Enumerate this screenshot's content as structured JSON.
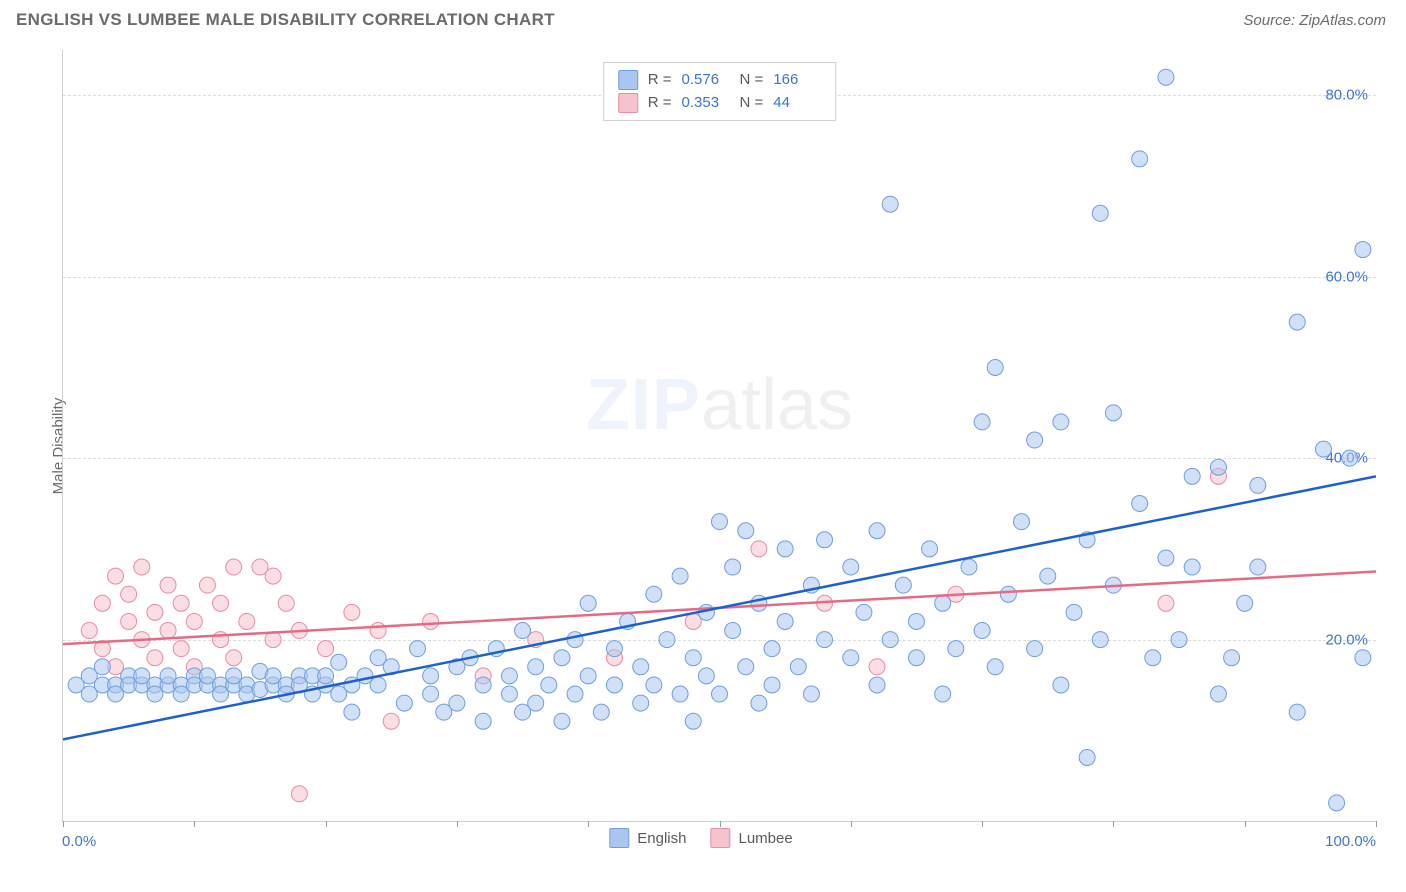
{
  "header": {
    "title": "ENGLISH VS LUMBEE MALE DISABILITY CORRELATION CHART",
    "source_prefix": "Source: ",
    "source_name": "ZipAtlas.com"
  },
  "axes": {
    "ylabel": "Male Disability",
    "xlim": [
      0,
      100
    ],
    "ylim": [
      0,
      85
    ],
    "x_ticks": [
      0,
      10,
      20,
      30,
      40,
      50,
      60,
      70,
      80,
      90,
      100
    ],
    "y_gridlines": [
      20,
      40,
      60,
      80
    ],
    "y_tick_labels": [
      "20.0%",
      "40.0%",
      "60.0%",
      "80.0%"
    ],
    "x_left_label": "0.0%",
    "x_right_label": "100.0%",
    "grid_color": "#dcdcdc",
    "axis_color": "#cfcfcf",
    "tick_label_color": "#3b74d6"
  },
  "series": {
    "english": {
      "label": "English",
      "R": "0.576",
      "N": "166",
      "fill": "#a9c6ef",
      "stroke": "#6f9ede",
      "line_color": "#1e62c9",
      "marker_radius": 8,
      "trend": {
        "x1": 0,
        "y1": 9,
        "x2": 100,
        "y2": 38
      },
      "points": [
        [
          1,
          15
        ],
        [
          2,
          16
        ],
        [
          2,
          14
        ],
        [
          3,
          15
        ],
        [
          3,
          17
        ],
        [
          4,
          15
        ],
        [
          4,
          14
        ],
        [
          5,
          16
        ],
        [
          5,
          15
        ],
        [
          6,
          15
        ],
        [
          6,
          16
        ],
        [
          7,
          15
        ],
        [
          7,
          14
        ],
        [
          8,
          15
        ],
        [
          8,
          16
        ],
        [
          9,
          15
        ],
        [
          9,
          14
        ],
        [
          10,
          16
        ],
        [
          10,
          15
        ],
        [
          11,
          15
        ],
        [
          11,
          16
        ],
        [
          12,
          15
        ],
        [
          12,
          14
        ],
        [
          13,
          15
        ],
        [
          13,
          16
        ],
        [
          14,
          15
        ],
        [
          14,
          14
        ],
        [
          15,
          16.5
        ],
        [
          15,
          14.5
        ],
        [
          16,
          15
        ],
        [
          16,
          16
        ],
        [
          17,
          15
        ],
        [
          17,
          14
        ],
        [
          18,
          16
        ],
        [
          18,
          15
        ],
        [
          19,
          16
        ],
        [
          19,
          14
        ],
        [
          20,
          15
        ],
        [
          20,
          16
        ],
        [
          21,
          17.5
        ],
        [
          21,
          14
        ],
        [
          22,
          15
        ],
        [
          23,
          16
        ],
        [
          24,
          15
        ],
        [
          25,
          17
        ],
        [
          22,
          12
        ],
        [
          24,
          18
        ],
        [
          26,
          13
        ],
        [
          27,
          19
        ],
        [
          28,
          14
        ],
        [
          28,
          16
        ],
        [
          29,
          12
        ],
        [
          30,
          17
        ],
        [
          30,
          13
        ],
        [
          31,
          18
        ],
        [
          32,
          15
        ],
        [
          32,
          11
        ],
        [
          33,
          19
        ],
        [
          34,
          14
        ],
        [
          34,
          16
        ],
        [
          35,
          12
        ],
        [
          35,
          21
        ],
        [
          36,
          17
        ],
        [
          36,
          13
        ],
        [
          37,
          15
        ],
        [
          38,
          18
        ],
        [
          38,
          11
        ],
        [
          39,
          20
        ],
        [
          39,
          14
        ],
        [
          40,
          16
        ],
        [
          40,
          24
        ],
        [
          41,
          12
        ],
        [
          42,
          19
        ],
        [
          42,
          15
        ],
        [
          43,
          22
        ],
        [
          44,
          13
        ],
        [
          44,
          17
        ],
        [
          45,
          25
        ],
        [
          45,
          15
        ],
        [
          46,
          20
        ],
        [
          47,
          14
        ],
        [
          47,
          27
        ],
        [
          48,
          18
        ],
        [
          48,
          11
        ],
        [
          49,
          23
        ],
        [
          49,
          16
        ],
        [
          50,
          33
        ],
        [
          50,
          14
        ],
        [
          51,
          21
        ],
        [
          51,
          28
        ],
        [
          52,
          17
        ],
        [
          52,
          32
        ],
        [
          53,
          13
        ],
        [
          53,
          24
        ],
        [
          54,
          19
        ],
        [
          54,
          15
        ],
        [
          55,
          30
        ],
        [
          55,
          22
        ],
        [
          56,
          17
        ],
        [
          57,
          26
        ],
        [
          57,
          14
        ],
        [
          58,
          20
        ],
        [
          58,
          31
        ],
        [
          60,
          18
        ],
        [
          60,
          28
        ],
        [
          61,
          23
        ],
        [
          62,
          32
        ],
        [
          62,
          15
        ],
        [
          63,
          20
        ],
        [
          63,
          68
        ],
        [
          64,
          26
        ],
        [
          65,
          18
        ],
        [
          65,
          22
        ],
        [
          66,
          30
        ],
        [
          67,
          14
        ],
        [
          67,
          24
        ],
        [
          68,
          19
        ],
        [
          69,
          28
        ],
        [
          70,
          21
        ],
        [
          70,
          44
        ],
        [
          71,
          17
        ],
        [
          71,
          50
        ],
        [
          72,
          25
        ],
        [
          73,
          33
        ],
        [
          74,
          19
        ],
        [
          74,
          42
        ],
        [
          75,
          27
        ],
        [
          76,
          15
        ],
        [
          76,
          44
        ],
        [
          77,
          23
        ],
        [
          78,
          31
        ],
        [
          78,
          7
        ],
        [
          79,
          67
        ],
        [
          79,
          20
        ],
        [
          80,
          45
        ],
        [
          80,
          26
        ],
        [
          82,
          73
        ],
        [
          82,
          35
        ],
        [
          83,
          18
        ],
        [
          84,
          82
        ],
        [
          84,
          29
        ],
        [
          85,
          20
        ],
        [
          86,
          28
        ],
        [
          86,
          38
        ],
        [
          88,
          14
        ],
        [
          88,
          39
        ],
        [
          89,
          18
        ],
        [
          90,
          24
        ],
        [
          91,
          37
        ],
        [
          91,
          28
        ],
        [
          94,
          55
        ],
        [
          94,
          12
        ],
        [
          96,
          41
        ],
        [
          97,
          2
        ],
        [
          98,
          40
        ],
        [
          99,
          63
        ],
        [
          99,
          18
        ]
      ]
    },
    "lumbee": {
      "label": "Lumbee",
      "R": "0.353",
      "N": "44",
      "fill": "#f6c2ce",
      "stroke": "#e98ba3",
      "line_color": "#e56a87",
      "marker_radius": 8,
      "trend": {
        "x1": 0,
        "y1": 19.5,
        "x2": 100,
        "y2": 27.5
      },
      "points": [
        [
          2,
          21
        ],
        [
          3,
          24
        ],
        [
          3,
          19
        ],
        [
          4,
          27
        ],
        [
          4,
          17
        ],
        [
          5,
          22
        ],
        [
          5,
          25
        ],
        [
          6,
          20
        ],
        [
          6,
          28
        ],
        [
          7,
          23
        ],
        [
          7,
          18
        ],
        [
          8,
          26
        ],
        [
          8,
          21
        ],
        [
          9,
          19
        ],
        [
          9,
          24
        ],
        [
          10,
          22
        ],
        [
          10,
          17
        ],
        [
          11,
          26
        ],
        [
          12,
          20
        ],
        [
          12,
          24
        ],
        [
          13,
          18
        ],
        [
          13,
          28
        ],
        [
          14,
          22
        ],
        [
          15,
          28
        ],
        [
          16,
          20
        ],
        [
          16,
          27
        ],
        [
          17,
          24
        ],
        [
          18,
          21
        ],
        [
          18,
          3
        ],
        [
          20,
          19
        ],
        [
          22,
          23
        ],
        [
          24,
          21
        ],
        [
          25,
          11
        ],
        [
          28,
          22
        ],
        [
          32,
          16
        ],
        [
          36,
          20
        ],
        [
          42,
          18
        ],
        [
          48,
          22
        ],
        [
          53,
          30
        ],
        [
          58,
          24
        ],
        [
          62,
          17
        ],
        [
          68,
          25
        ],
        [
          84,
          24
        ],
        [
          88,
          38
        ]
      ]
    }
  },
  "legend_top": {
    "R_label": "R =",
    "N_label": "N ="
  },
  "watermark": {
    "zip": "ZIP",
    "atlas": "atlas"
  },
  "style": {
    "background": "#ffffff",
    "title_color": "#6b6b6b",
    "marker_opacity": 0.55,
    "line_width": 2.5
  }
}
